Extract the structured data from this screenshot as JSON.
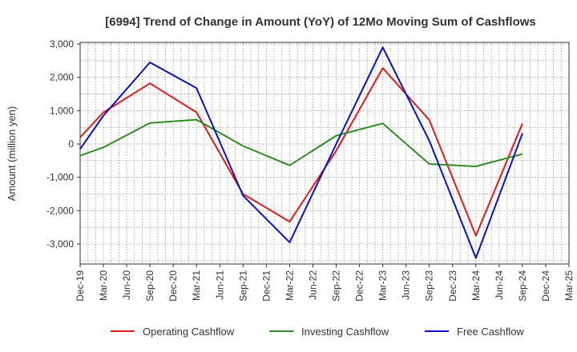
{
  "chart_data": {
    "type": "line",
    "title": "[6994]  Trend of Change in Amount (YoY) of 12Mo Moving Sum of Cashflows",
    "xlabel": "",
    "ylabel": "Amount (million yen)",
    "ylim": [
      -3600,
      3050
    ],
    "yticks": [
      3000,
      2000,
      1000,
      0,
      -1000,
      -2000,
      -3000
    ],
    "ytick_labels": [
      "3,000",
      "2,000",
      "1,000",
      "0",
      "-1,000",
      "-2,000",
      "-3,000"
    ],
    "categories": [
      "Dec-19",
      "Mar-20",
      "Jun-20",
      "Sep-20",
      "Dec-20",
      "Mar-21",
      "Jun-21",
      "Sep-21",
      "Dec-21",
      "Mar-22",
      "Jun-22",
      "Sep-22",
      "Dec-22",
      "Mar-23",
      "Jun-23",
      "Sep-23",
      "Dec-23",
      "Mar-24",
      "Jun-24",
      "Sep-24",
      "Dec-24",
      "Mar-25"
    ],
    "grid": true,
    "legend_position": "bottom",
    "series": [
      {
        "name": "Operating Cashflow",
        "color": "#e41a1c",
        "values": [
          200,
          950,
          null,
          1820,
          null,
          950,
          null,
          -1500,
          null,
          -2330,
          null,
          -200,
          null,
          2280,
          null,
          720,
          null,
          -2750,
          null,
          620,
          null,
          null
        ]
      },
      {
        "name": "Investing Cashflow",
        "color": "#2e8b22",
        "values": [
          -350,
          -100,
          null,
          630,
          null,
          730,
          null,
          -60,
          null,
          -640,
          null,
          250,
          null,
          620,
          null,
          -600,
          null,
          -670,
          null,
          -300,
          null,
          null
        ]
      },
      {
        "name": "Free Cashflow",
        "color": "#0a10c8",
        "values": [
          -150,
          850,
          null,
          2450,
          null,
          1680,
          null,
          -1550,
          null,
          -2950,
          null,
          0,
          null,
          2900,
          null,
          100,
          null,
          -3420,
          null,
          320,
          null,
          null
        ]
      }
    ]
  }
}
